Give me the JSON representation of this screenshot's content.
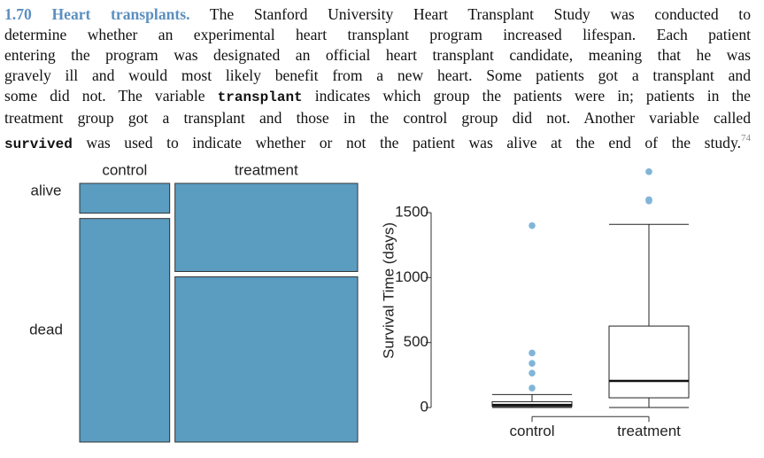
{
  "problem": {
    "number": "1.70",
    "title": "Heart transplants.",
    "lines": [
      [
        {
          "text": "The Stanford University Heart Transplant Study was conducted to"
        }
      ],
      [
        {
          "text": "determine whether an experimental heart transplant program increased lifespan. Each patient"
        }
      ],
      [
        {
          "text": "entering the program was designated an official heart transplant candidate, meaning that he was"
        }
      ],
      [
        {
          "text": "gravely ill and would most likely benefit from a new heart. Some patients got a transplant and"
        }
      ],
      [
        {
          "text": "some did not. The variable "
        },
        {
          "text": "transplant",
          "code": true
        },
        {
          "text": " indicates which group the patients were in; patients in the"
        }
      ],
      [
        {
          "text": "treatment group got a transplant and those in the control group did not. Another variable called"
        }
      ],
      [
        {
          "text": "survived",
          "code": true
        },
        {
          "text": " was used to indicate whether or not the patient was alive at the end of the study."
        },
        {
          "text": "74",
          "sup": true
        }
      ]
    ]
  },
  "chart_data": [
    {
      "type": "mosaic",
      "categories": [
        "control",
        "treatment"
      ],
      "color": "#5b9cc1",
      "series": [
        {
          "name": "alive",
          "values": [
            4,
            24
          ]
        },
        {
          "name": "dead",
          "values": [
            30,
            45
          ]
        }
      ]
    },
    {
      "type": "box",
      "categories": [
        "control",
        "treatment"
      ],
      "y_label": "Survival Time (days)",
      "ylim": [
        -70,
        1880
      ],
      "yticks": [
        0,
        500,
        1000,
        1500
      ],
      "outlier_color": "#80b5d8",
      "boxes": [
        {
          "whisker_low": 0,
          "q1": 8,
          "median": 20,
          "q3": 45,
          "whisker_high": 100,
          "outliers": [
            150,
            265,
            340,
            420,
            1400
          ]
        },
        {
          "whisker_low": 0,
          "q1": 75,
          "median": 205,
          "q3": 627,
          "whisker_high": 1410,
          "outliers": [
            1590,
            1600,
            1815
          ]
        }
      ]
    }
  ]
}
